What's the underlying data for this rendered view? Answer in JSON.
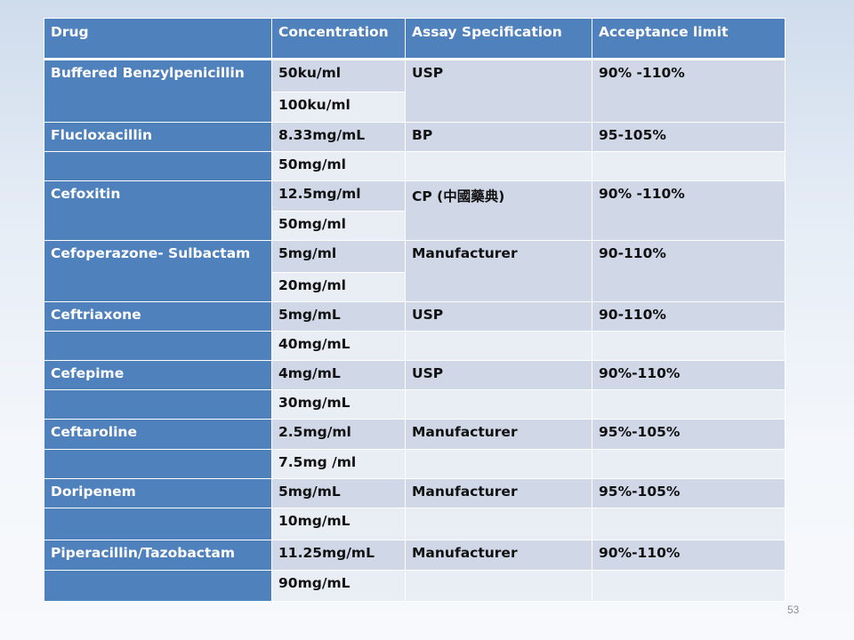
{
  "headers": {
    "drug": "Drug",
    "concentration": "Concentration",
    "spec": "Assay Specification",
    "limit": "Acceptance  limit"
  },
  "rows": [
    {
      "drug": "Buffered Benzylpenicillin",
      "conc": "50ku/ml",
      "spec": "USP",
      "limit": "90% -110%"
    },
    {
      "drug": "",
      "conc": "100ku/ml",
      "spec": "",
      "limit": ""
    },
    {
      "drug": "Flucloxacillin",
      "conc": "8.33mg/mL",
      "spec": "BP",
      "limit": "95-105%"
    },
    {
      "drug": "",
      "conc": "50mg/ml",
      "spec": "",
      "limit": ""
    },
    {
      "drug": "Cefoxitin",
      "conc": "12.5mg/ml",
      "spec": "CP (中國藥典)",
      "limit": "90% -110%"
    },
    {
      "drug": "",
      "conc": "50mg/ml",
      "spec": "",
      "limit": ""
    },
    {
      "drug": "Cefoperazone- Sulbactam",
      "conc": "5mg/ml",
      "spec": "Manufacturer",
      "limit": "90-110%"
    },
    {
      "drug": "",
      "conc": "20mg/ml",
      "spec": "",
      "limit": ""
    },
    {
      "drug": "Ceftriaxone",
      "conc": "5mg/mL",
      "spec": "USP",
      "limit": "90-110%"
    },
    {
      "drug": "",
      "conc": "40mg/mL",
      "spec": "",
      "limit": ""
    },
    {
      "drug": "Cefepime",
      "conc": "4mg/mL",
      "spec": "USP",
      "limit": "90%-110%"
    },
    {
      "drug": "",
      "conc": "30mg/mL",
      "spec": "",
      "limit": ""
    },
    {
      "drug": "Ceftaroline",
      "conc": "2.5mg/ml",
      "spec": "Manufacturer",
      "limit": "95%-105%"
    },
    {
      "drug": "",
      "conc": "7.5mg /ml",
      "spec": "",
      "limit": ""
    },
    {
      "drug": "Doripenem",
      "conc": "5mg/mL",
      "spec": "Manufacturer",
      "limit": "95%-105%"
    },
    {
      "drug": "",
      "conc": "10mg/mL",
      "spec": "",
      "limit": ""
    },
    {
      "drug": "Piperacillin/Tazobactam",
      "conc": "11.25mg/mL",
      "spec": "Manufacturer",
      "limit": "90%-110%"
    },
    {
      "drug": "",
      "conc": "90mg/mL",
      "spec": "",
      "limit": ""
    }
  ],
  "page_number": "53"
}
